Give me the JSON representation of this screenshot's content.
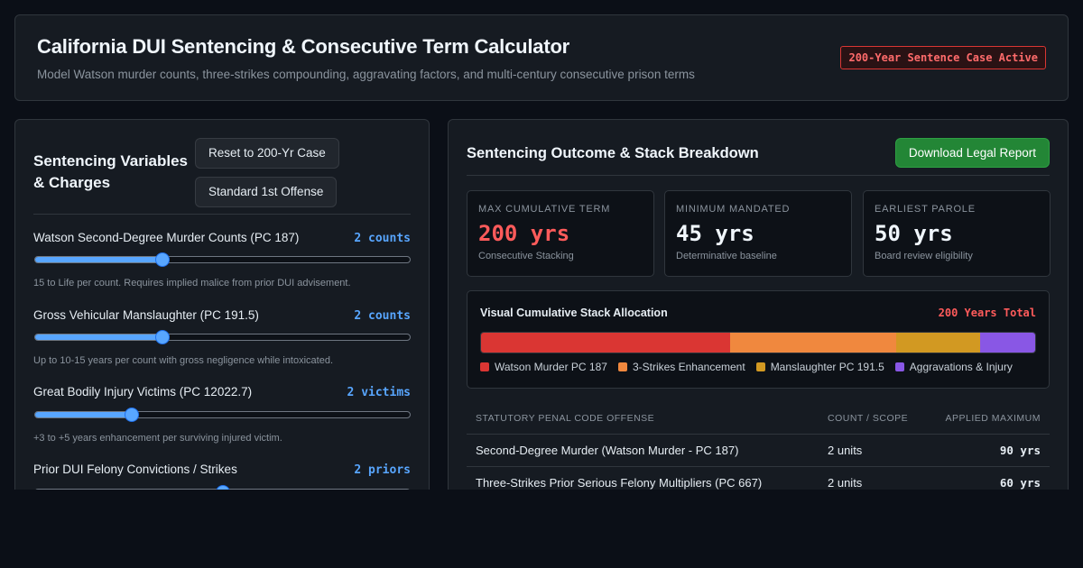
{
  "header": {
    "title": "California DUI Sentencing & Consecutive Term Calculator",
    "subtitle": "Model Watson murder counts, three-strikes compounding, aggravating factors, and multi-century consecutive prison terms",
    "badge": "200-Year Sentence Case Active"
  },
  "variables_panel": {
    "title": "Sentencing Variables & Charges",
    "reset_button": "Reset to 200-Yr Case",
    "standard_button": "Standard 1st Offense",
    "variables": [
      {
        "label": "Watson Second-Degree Murder Counts (PC 187)",
        "value_text": "2 counts",
        "level": 0.34,
        "description": "15 to Life per count. Requires implied malice from prior DUI advisement."
      },
      {
        "label": "Gross Vehicular Manslaughter (PC 191.5)",
        "value_text": "2 counts",
        "level": 0.34,
        "description": "Up to 10-15 years per count with gross negligence while intoxicated."
      },
      {
        "label": "Great Bodily Injury Victims (PC 12022.7)",
        "value_text": "2 victims",
        "level": 0.26,
        "description": "+3 to +5 years enhancement per surviving injured victim."
      },
      {
        "label": "Prior DUI Felony Convictions / Strikes",
        "value_text": "2 priors",
        "level": 0.5,
        "description": ""
      }
    ]
  },
  "outcome_panel": {
    "title": "Sentencing Outcome & Stack Breakdown",
    "download_button": "Download Legal Report",
    "stats": [
      {
        "label": "MAX CUMULATIVE TERM",
        "value": "200 yrs",
        "note": "Consecutive Stacking",
        "highlight": true
      },
      {
        "label": "MINIMUM MANDATED",
        "value": "45 yrs",
        "note": "Determinative baseline",
        "highlight": false
      },
      {
        "label": "EARLIEST PAROLE",
        "value": "50 yrs",
        "note": "Board review eligibility",
        "highlight": false
      }
    ],
    "allocation": {
      "title": "Visual Cumulative Stack Allocation",
      "total": "200 Years Total",
      "segments": [
        {
          "name": "Watson Murder PC 187",
          "share": 0.45,
          "color": "#da3633"
        },
        {
          "name": "3-Strikes Enhancement",
          "share": 0.3,
          "color": "#f0883e"
        },
        {
          "name": "Manslaughter PC 191.5",
          "share": 0.15,
          "color": "#d29922"
        },
        {
          "name": "Aggravations & Injury",
          "share": 0.1,
          "color": "#8957e5"
        }
      ]
    },
    "table": {
      "headers": [
        "STATUTORY PENAL CODE OFFENSE",
        "COUNT / SCOPE",
        "APPLIED MAXIMUM"
      ],
      "rows": [
        {
          "offense": "Second-Degree Murder (Watson Murder - PC 187)",
          "count": "2 units",
          "max": "90 yrs"
        },
        {
          "offense": "Three-Strikes Prior Serious Felony Multipliers (PC 667)",
          "count": "2 units",
          "max": "60 yrs"
        }
      ]
    }
  }
}
